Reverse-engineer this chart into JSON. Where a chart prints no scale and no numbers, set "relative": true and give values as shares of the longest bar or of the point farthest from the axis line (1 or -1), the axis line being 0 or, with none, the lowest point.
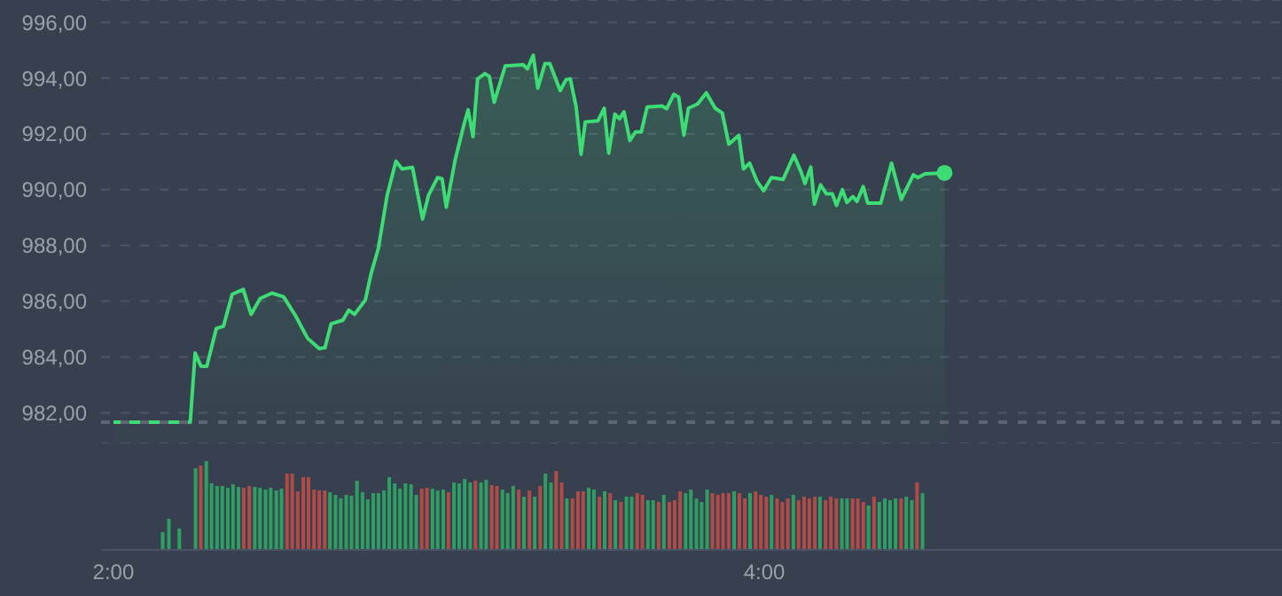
{
  "chart_data": [
    {
      "type": "area",
      "x": [
        2.0,
        2.236,
        2.251,
        2.269,
        2.287,
        2.316,
        2.338,
        2.365,
        2.399,
        2.423,
        2.451,
        2.487,
        2.523,
        2.56,
        2.596,
        2.632,
        2.65,
        2.669,
        2.705,
        2.723,
        2.741,
        2.774,
        2.792,
        2.814,
        2.841,
        2.868,
        2.887,
        2.919,
        2.95,
        2.968,
        2.996,
        3.01,
        3.023,
        3.05,
        3.077,
        3.09,
        3.105,
        3.119,
        3.141,
        3.155,
        3.17,
        3.204,
        3.259,
        3.272,
        3.29,
        3.304,
        3.326,
        3.341,
        3.373,
        3.391,
        3.404,
        3.422,
        3.437,
        3.45,
        3.489,
        3.508,
        3.522,
        3.541,
        3.555,
        3.569,
        3.587,
        3.604,
        3.622,
        3.64,
        3.686,
        3.7,
        3.722,
        3.737,
        3.753,
        3.767,
        3.795,
        3.822,
        3.849,
        3.871,
        3.891,
        3.922,
        3.936,
        3.955,
        3.977,
        3.998,
        4.022,
        4.058,
        4.091,
        4.113,
        4.125,
        4.143,
        4.154,
        4.173,
        4.191,
        4.209,
        4.222,
        4.24,
        4.254,
        4.272,
        4.285,
        4.304,
        4.318,
        4.358,
        4.391,
        4.421,
        4.458,
        4.472,
        4.494,
        4.554
      ],
      "values": [
        981.66,
        981.66,
        984.14,
        983.67,
        983.67,
        985.02,
        985.1,
        986.25,
        986.42,
        985.53,
        986.1,
        986.29,
        986.16,
        985.47,
        984.68,
        984.3,
        984.33,
        985.19,
        985.32,
        985.68,
        985.53,
        986.04,
        987.0,
        987.89,
        989.79,
        991.02,
        990.74,
        990.8,
        988.95,
        989.79,
        990.43,
        990.39,
        989.37,
        991.06,
        992.33,
        992.86,
        991.9,
        993.97,
        994.16,
        994.06,
        993.13,
        994.44,
        994.48,
        994.33,
        994.82,
        993.64,
        994.52,
        994.52,
        993.55,
        993.95,
        993.97,
        992.96,
        991.27,
        992.43,
        992.47,
        992.92,
        991.31,
        992.71,
        992.54,
        992.79,
        991.76,
        992.07,
        992.07,
        992.96,
        993.0,
        992.9,
        993.42,
        993.32,
        991.95,
        992.92,
        993.07,
        993.47,
        992.92,
        992.75,
        991.63,
        991.95,
        990.74,
        990.95,
        990.32,
        989.96,
        990.43,
        990.37,
        991.23,
        990.64,
        990.22,
        990.81,
        989.48,
        990.17,
        989.85,
        989.85,
        989.44,
        990.0,
        989.54,
        989.75,
        989.58,
        990.11,
        989.52,
        989.52,
        990.95,
        989.65,
        990.53,
        990.43,
        990.57,
        990.6
      ],
      "color": "#3ddc74",
      "xlim": [
        1.962,
        5.591
      ],
      "ylim": [
        980.9,
        996.8
      ],
      "yticks": [
        {
          "value": 982,
          "label": "982,00"
        },
        {
          "value": 984,
          "label": "984,00"
        },
        {
          "value": 986,
          "label": "986,00"
        },
        {
          "value": 988,
          "label": "988,00"
        },
        {
          "value": 990,
          "label": "990,00"
        },
        {
          "value": 992,
          "label": "992,00"
        },
        {
          "value": 994,
          "label": "994,00"
        },
        {
          "value": 996,
          "label": "996,00"
        }
      ],
      "grid": "y",
      "tick_labels": "y",
      "ref_lines": [
        {
          "axis": "y",
          "value": 981.66,
          "line_style": "dashed",
          "color": "#5d6575"
        }
      ]
    },
    {
      "type": "bar",
      "relative": true,
      "tick_labels": "x",
      "x": [
        2.154,
        2.173,
        2.205,
        2.255,
        2.271,
        2.288,
        2.304,
        2.321,
        2.337,
        2.354,
        2.37,
        2.387,
        2.403,
        2.42,
        2.437,
        2.453,
        2.47,
        2.486,
        2.503,
        2.519,
        2.536,
        2.552,
        2.569,
        2.586,
        2.602,
        2.619,
        2.635,
        2.652,
        2.668,
        2.685,
        2.701,
        2.718,
        2.734,
        2.751,
        2.768,
        2.784,
        2.801,
        2.817,
        2.834,
        2.85,
        2.867,
        2.883,
        2.9,
        2.917,
        2.933,
        2.95,
        2.966,
        2.983,
        2.999,
        3.016,
        3.032,
        3.049,
        3.065,
        3.082,
        3.099,
        3.115,
        3.132,
        3.148,
        3.165,
        3.181,
        3.198,
        3.214,
        3.231,
        3.248,
        3.264,
        3.281,
        3.297,
        3.314,
        3.33,
        3.347,
        3.363,
        3.38,
        3.396,
        3.413,
        3.43,
        3.446,
        3.463,
        3.479,
        3.496,
        3.512,
        3.529,
        3.545,
        3.562,
        3.579,
        3.595,
        3.612,
        3.628,
        3.645,
        3.661,
        3.678,
        3.694,
        3.711,
        3.727,
        3.744,
        3.761,
        3.777,
        3.794,
        3.81,
        3.827,
        3.843,
        3.86,
        3.876,
        3.893,
        3.91,
        3.926,
        3.943,
        3.959,
        3.976,
        3.992,
        4.009,
        4.025,
        4.042,
        4.058,
        4.075,
        4.092,
        4.108,
        4.125,
        4.141,
        4.158,
        4.174,
        4.191,
        4.207,
        4.224,
        4.241,
        4.257,
        4.274,
        4.29,
        4.307,
        4.323,
        4.34,
        4.356,
        4.373,
        4.389,
        4.406,
        4.423,
        4.439,
        4.456,
        4.472,
        4.489
      ],
      "values": [
        0.2,
        0.35,
        0.24,
        0.92,
        0.95,
        1.0,
        0.75,
        0.72,
        0.72,
        0.7,
        0.74,
        0.71,
        0.7,
        0.72,
        0.71,
        0.7,
        0.68,
        0.7,
        0.67,
        0.69,
        0.86,
        0.86,
        0.66,
        0.82,
        0.82,
        0.68,
        0.67,
        0.67,
        0.65,
        0.62,
        0.58,
        0.62,
        0.61,
        0.78,
        0.65,
        0.57,
        0.64,
        0.64,
        0.67,
        0.82,
        0.75,
        0.69,
        0.75,
        0.74,
        0.62,
        0.69,
        0.7,
        0.69,
        0.67,
        0.68,
        0.65,
        0.76,
        0.75,
        0.8,
        0.76,
        0.78,
        0.76,
        0.79,
        0.73,
        0.72,
        0.68,
        0.64,
        0.72,
        0.68,
        0.6,
        0.67,
        0.6,
        0.72,
        0.86,
        0.76,
        0.89,
        0.76,
        0.58,
        0.58,
        0.66,
        0.66,
        0.7,
        0.68,
        0.6,
        0.66,
        0.64,
        0.56,
        0.54,
        0.6,
        0.6,
        0.64,
        0.62,
        0.56,
        0.56,
        0.54,
        0.62,
        0.54,
        0.56,
        0.66,
        0.64,
        0.68,
        0.58,
        0.54,
        0.68,
        0.64,
        0.62,
        0.64,
        0.64,
        0.66,
        0.64,
        0.58,
        0.64,
        0.66,
        0.62,
        0.6,
        0.62,
        0.58,
        0.54,
        0.58,
        0.62,
        0.56,
        0.6,
        0.58,
        0.6,
        0.6,
        0.56,
        0.6,
        0.58,
        0.58,
        0.58,
        0.58,
        0.58,
        0.54,
        0.5,
        0.6,
        0.54,
        0.58,
        0.56,
        0.58,
        0.58,
        0.6,
        0.56,
        0.76,
        0.64
      ],
      "colors": [
        "#2f9e62",
        "#2f9e62",
        "#2f9e62",
        "#2f9e62",
        "#b04b48",
        "#2f9e62",
        "#2f9e62",
        "#2f9e62",
        "#2f9e62",
        "#2f9e62",
        "#2f9e62",
        "#2f9e62",
        "#b04b48",
        "#b04b48",
        "#2f9e62",
        "#2f9e62",
        "#2f9e62",
        "#2f9e62",
        "#2f9e62",
        "#2f9e62",
        "#b04b48",
        "#b04b48",
        "#b04b48",
        "#b04b48",
        "#b04b48",
        "#b04b48",
        "#b04b48",
        "#b04b48",
        "#2f9e62",
        "#2f9e62",
        "#2f9e62",
        "#2f9e62",
        "#2f9e62",
        "#2f9e62",
        "#2f9e62",
        "#2f9e62",
        "#2f9e62",
        "#2f9e62",
        "#2f9e62",
        "#2f9e62",
        "#2f9e62",
        "#2f9e62",
        "#2f9e62",
        "#2f9e62",
        "#2f9e62",
        "#b04b48",
        "#b04b48",
        "#2f9e62",
        "#2f9e62",
        "#2f9e62",
        "#b04b48",
        "#2f9e62",
        "#2f9e62",
        "#2f9e62",
        "#2f9e62",
        "#b04b48",
        "#2f9e62",
        "#2f9e62",
        "#b04b48",
        "#b04b48",
        "#2f9e62",
        "#2f9e62",
        "#2f9e62",
        "#b04b48",
        "#2f9e62",
        "#b04b48",
        "#2f9e62",
        "#b04b48",
        "#2f9e62",
        "#2f9e62",
        "#b04b48",
        "#b04b48",
        "#2f9e62",
        "#b04b48",
        "#b04b48",
        "#b04b48",
        "#2f9e62",
        "#2f9e62",
        "#b04b48",
        "#2f9e62",
        "#b04b48",
        "#2f9e62",
        "#b04b48",
        "#2f9e62",
        "#2f9e62",
        "#b04b48",
        "#b04b48",
        "#2f9e62",
        "#2f9e62",
        "#b04b48",
        "#2f9e62",
        "#b04b48",
        "#b04b48",
        "#b04b48",
        "#2f9e62",
        "#2f9e62",
        "#2f9e62",
        "#2f9e62",
        "#2f9e62",
        "#b04b48",
        "#b04b48",
        "#b04b48",
        "#b04b48",
        "#2f9e62",
        "#b04b48",
        "#b04b48",
        "#2f9e62",
        "#b04b48",
        "#b04b48",
        "#b04b48",
        "#2f9e62",
        "#b04b48",
        "#b04b48",
        "#b04b48",
        "#2f9e62",
        "#b04b48",
        "#b04b48",
        "#b04b48",
        "#b04b48",
        "#2f9e62",
        "#b04b48",
        "#b04b48",
        "#b04b48",
        "#2f9e62",
        "#2f9e62",
        "#b04b48",
        "#b04b48",
        "#b04b48",
        "#2f9e62",
        "#b04b48",
        "#2f9e62",
        "#2f9e62",
        "#2f9e62",
        "#2f9e62",
        "#b04b48",
        "#2f9e62",
        "#2f9e62",
        "#b04b48",
        "#2f9e62"
      ],
      "xlim": [
        1.962,
        5.591
      ],
      "xticks": [
        {
          "value": 2,
          "label": "2:00"
        },
        {
          "value": 4,
          "label": "4:00"
        }
      ]
    }
  ]
}
